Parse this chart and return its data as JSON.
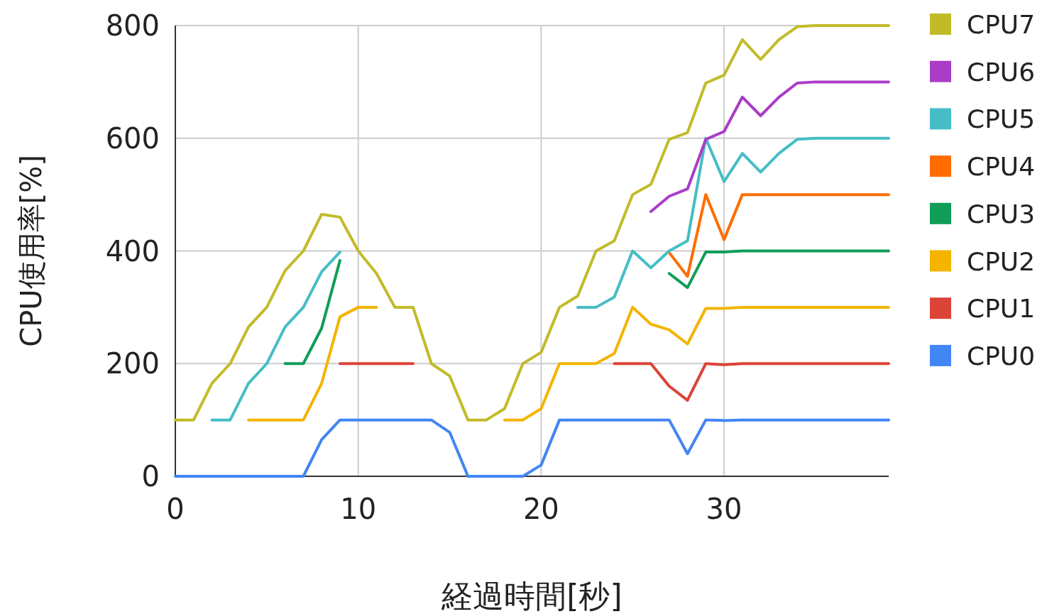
{
  "chart_data": {
    "type": "line",
    "xlabel": "経過時間[秒]",
    "ylabel": "CPU使用率[%]",
    "x": [
      0,
      1,
      2,
      3,
      4,
      5,
      6,
      7,
      8,
      9,
      10,
      11,
      12,
      13,
      14,
      15,
      16,
      17,
      18,
      19,
      20,
      21,
      22,
      23,
      24,
      25,
      26,
      27,
      28,
      29,
      30,
      31,
      32,
      33,
      34,
      35,
      36,
      37,
      38,
      39
    ],
    "xlim": [
      0,
      39
    ],
    "xticks": [
      0,
      10,
      20,
      30
    ],
    "ylim": [
      0,
      800
    ],
    "yticks": [
      0,
      200,
      400,
      600,
      800
    ],
    "grid": true,
    "legend": "right",
    "marker": "none",
    "line_style": "solid",
    "series": [
      {
        "name": "CPU0",
        "color": "#4285f4",
        "values": [
          0,
          0,
          0,
          0,
          0,
          0,
          0,
          0,
          65,
          100,
          100,
          100,
          100,
          100,
          100,
          78,
          0,
          0,
          0,
          0,
          20,
          100,
          100,
          100,
          100,
          100,
          100,
          100,
          40,
          100,
          99,
          100,
          100,
          100,
          100,
          100,
          100,
          100,
          100,
          100
        ]
      },
      {
        "name": "CPU1",
        "color": "#db4437",
        "values": [
          null,
          null,
          null,
          null,
          null,
          null,
          null,
          null,
          null,
          200,
          200,
          200,
          200,
          200,
          null,
          null,
          null,
          null,
          null,
          null,
          null,
          null,
          null,
          null,
          200,
          200,
          200,
          160,
          135,
          200,
          198,
          200,
          200,
          200,
          200,
          200,
          200,
          200,
          200,
          200
        ]
      },
      {
        "name": "CPU2",
        "color": "#f4b400",
        "values": [
          null,
          null,
          null,
          null,
          100,
          100,
          100,
          100,
          165,
          283,
          300,
          300,
          null,
          null,
          null,
          null,
          null,
          null,
          100,
          100,
          120,
          200,
          200,
          200,
          218,
          300,
          270,
          260,
          235,
          298,
          298,
          300,
          300,
          300,
          300,
          300,
          300,
          300,
          300,
          300
        ]
      },
      {
        "name": "CPU3",
        "color": "#0f9d58",
        "values": [
          null,
          null,
          null,
          null,
          null,
          null,
          200,
          200,
          263,
          383,
          null,
          null,
          null,
          null,
          null,
          null,
          null,
          null,
          null,
          null,
          null,
          null,
          null,
          null,
          null,
          null,
          null,
          360,
          335,
          398,
          398,
          400,
          400,
          400,
          400,
          400,
          400,
          400,
          400,
          400
        ]
      },
      {
        "name": "CPU4",
        "color": "#ff6d00",
        "values": [
          null,
          null,
          null,
          null,
          null,
          null,
          null,
          null,
          null,
          null,
          null,
          null,
          null,
          null,
          null,
          null,
          null,
          null,
          null,
          null,
          null,
          null,
          null,
          null,
          null,
          null,
          null,
          397,
          355,
          500,
          420,
          500,
          500,
          500,
          500,
          500,
          500,
          500,
          500,
          500
        ]
      },
      {
        "name": "CPU5",
        "color": "#46bdc6",
        "values": [
          null,
          null,
          100,
          100,
          165,
          200,
          265,
          300,
          363,
          398,
          null,
          null,
          null,
          null,
          null,
          null,
          null,
          null,
          null,
          null,
          null,
          null,
          300,
          300,
          318,
          400,
          370,
          400,
          418,
          600,
          523,
          573,
          540,
          573,
          598,
          600,
          600,
          600,
          600,
          600
        ]
      },
      {
        "name": "CPU6",
        "color": "#ab3cc8",
        "values": [
          null,
          null,
          null,
          null,
          null,
          null,
          null,
          null,
          null,
          null,
          null,
          null,
          null,
          null,
          null,
          null,
          null,
          null,
          null,
          null,
          null,
          null,
          null,
          null,
          null,
          null,
          470,
          497,
          510,
          598,
          612,
          673,
          640,
          673,
          698,
          700,
          700,
          700,
          700,
          700
        ]
      },
      {
        "name": "CPU7",
        "color": "#c2bb29",
        "values": [
          100,
          100,
          165,
          200,
          265,
          300,
          365,
          400,
          465,
          460,
          400,
          360,
          300,
          300,
          200,
          178,
          100,
          100,
          120,
          200,
          220,
          300,
          320,
          400,
          418,
          500,
          518,
          598,
          610,
          698,
          712,
          775,
          740,
          775,
          798,
          800,
          800,
          800,
          800,
          800
        ]
      }
    ]
  }
}
